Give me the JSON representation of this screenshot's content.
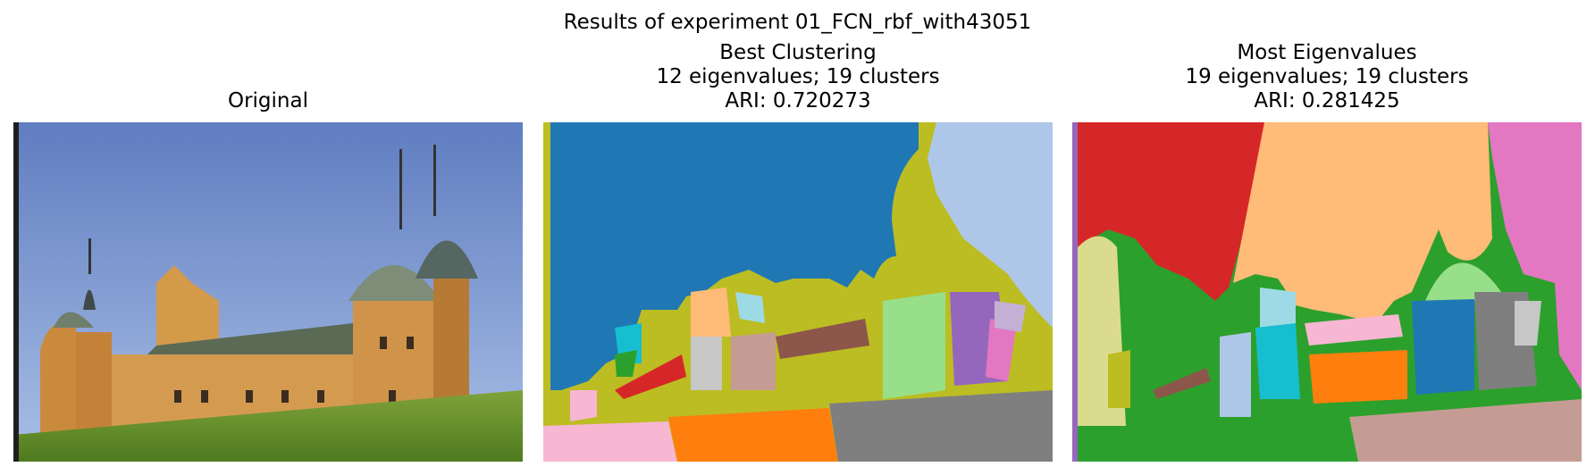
{
  "figure": {
    "suptitle": "Results of experiment 01_FCN_rbf_with43051"
  },
  "panels": [
    {
      "title_lines": [
        "Original"
      ]
    },
    {
      "title_lines": [
        "Best Clustering",
        "12 eigenvalues; 19 clusters",
        "ARI: 0.720273"
      ]
    },
    {
      "title_lines": [
        "Most Eigenvalues",
        "19 eigenvalues; 19 clusters",
        "ARI: 0.281425"
      ]
    }
  ],
  "colors": {
    "sky_blue": "#6f8fcf",
    "tab_blue": "#1f77b4",
    "tab_olive": "#bcbd22",
    "tab_lightblue": "#aec7e8",
    "tab_green": "#2ca02c",
    "tab_lightgreen": "#98df8a",
    "tab_red": "#d62728",
    "tab_orange": "#ff7f0e",
    "tab_peach": "#ffbb78",
    "tab_pink": "#e377c2",
    "tab_lightpink": "#f7b6d2",
    "tab_gray": "#7f7f7f",
    "tab_lightgray": "#c7c7c7",
    "tab_purple": "#9467bd",
    "tab_lavender": "#c5b0d5",
    "tab_cyan": "#17becf",
    "tab_lightcyan": "#9edae5",
    "tab_brown": "#8c564b",
    "tab_rosybrown": "#c49c94",
    "tab_khaki": "#dbdb8d"
  }
}
